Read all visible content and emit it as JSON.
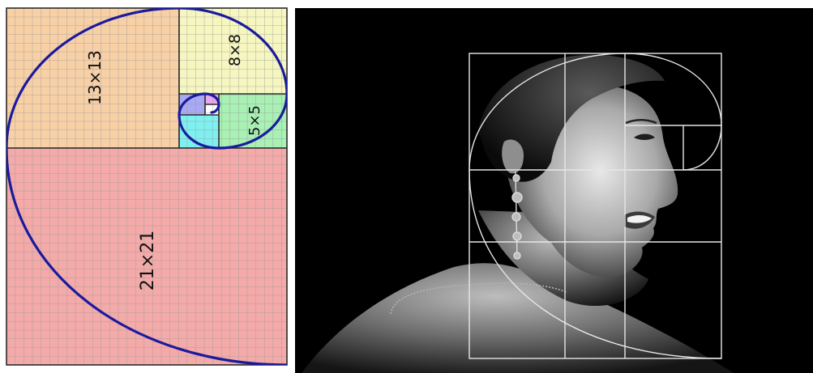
{
  "fibonacci_diagram": {
    "squares": [
      {
        "size_label": "21×21",
        "fill": "#f4aaa8"
      },
      {
        "size_label": "13×13",
        "fill": "#f8d0a6"
      },
      {
        "size_label": "8×8",
        "fill": "#f6f6c0"
      },
      {
        "size_label": "5×5",
        "fill": "#a8f0b4"
      },
      {
        "size_label": "",
        "fill": "#7ef0f0"
      },
      {
        "size_label": "",
        "fill": "#a8a8f4"
      },
      {
        "size_label": "",
        "fill": "#e8a8ee"
      },
      {
        "size_label": "",
        "fill": "#ffffff"
      }
    ],
    "grid_line_color": "#9a9a9a",
    "border_color": "#2a2a2a",
    "spiral_color": "#1a1a9e"
  },
  "photo_panel": {
    "subject": "profile-portrait-woman",
    "background_color": "#000000",
    "overlay_line_color": "#e6e6e6"
  }
}
